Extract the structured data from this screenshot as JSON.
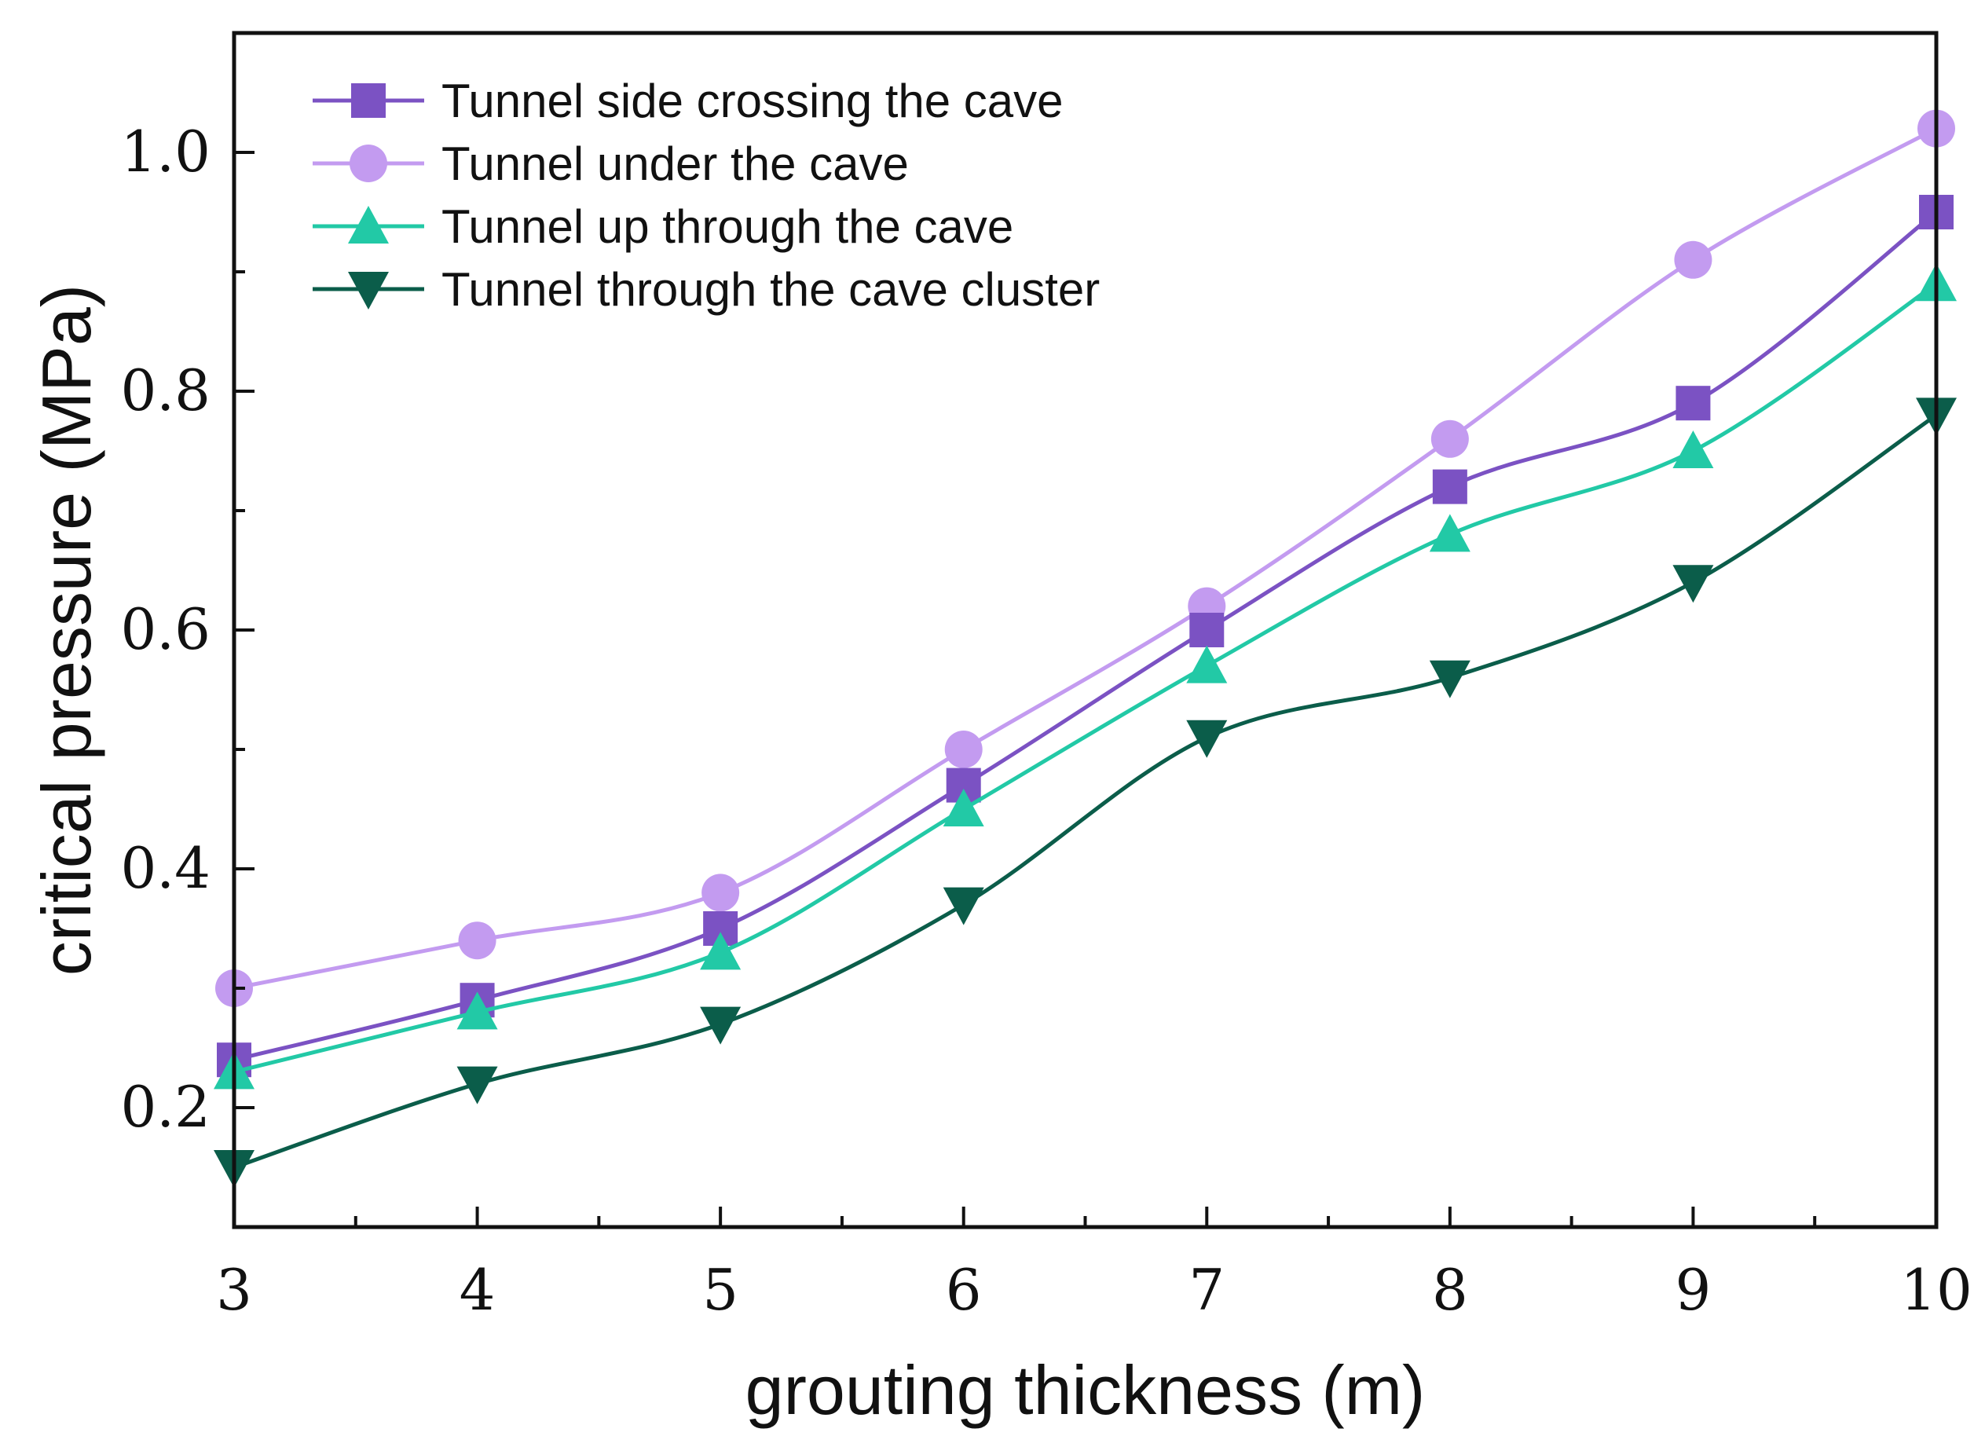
{
  "chart_data": {
    "type": "line",
    "xlabel": "grouting thickness (m)",
    "ylabel": "critical pressure (MPa)",
    "xlim": [
      3,
      10
    ],
    "ylim": [
      0.1,
      1.1
    ],
    "x": [
      3,
      4,
      5,
      6,
      7,
      8,
      9,
      10
    ],
    "xticks": [
      "3",
      "4",
      "5",
      "6",
      "7",
      "8",
      "9",
      "10"
    ],
    "yticks": [
      {
        "value": 0.2,
        "label": "0.2"
      },
      {
        "value": 0.4,
        "label": "0.4"
      },
      {
        "value": 0.6,
        "label": "0.6"
      },
      {
        "value": 0.8,
        "label": "0.8"
      },
      {
        "value": 1.0,
        "label": "1.0"
      }
    ],
    "legend_position": "top-left",
    "grid": false,
    "series": [
      {
        "name": "Tunnel side crossing the cave",
        "marker": "square",
        "color": "#7b52c3",
        "values": [
          0.24,
          0.29,
          0.35,
          0.47,
          0.6,
          0.72,
          0.79,
          0.95
        ]
      },
      {
        "name": "Tunnel under the cave",
        "marker": "circle",
        "color": "#c39bf0",
        "values": [
          0.3,
          0.34,
          0.38,
          0.5,
          0.62,
          0.76,
          0.91,
          1.02
        ]
      },
      {
        "name": "Tunnel up through the cave",
        "marker": "triangle-up",
        "color": "#22c9a6",
        "values": [
          0.23,
          0.28,
          0.33,
          0.45,
          0.57,
          0.68,
          0.75,
          0.89
        ]
      },
      {
        "name": "Tunnel through the cave cluster",
        "marker": "triangle-down",
        "color": "#0b5d4a",
        "values": [
          0.15,
          0.22,
          0.27,
          0.37,
          0.51,
          0.56,
          0.64,
          0.78
        ]
      }
    ]
  }
}
